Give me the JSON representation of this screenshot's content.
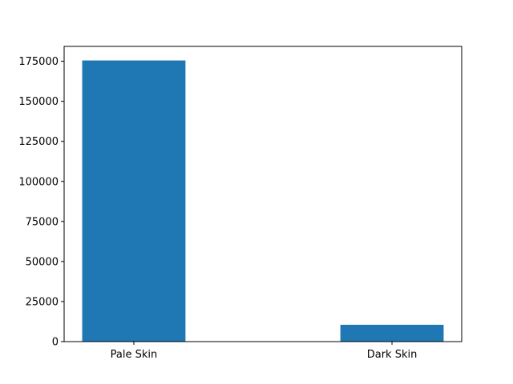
{
  "chart_data": {
    "type": "bar",
    "title": "",
    "xlabel": "",
    "ylabel": "",
    "categories": [
      "Pale Skin",
      "Dark Skin"
    ],
    "values": [
      175500,
      10500
    ],
    "ylim": [
      0,
      184275
    ],
    "yticks": [
      0,
      25000,
      50000,
      75000,
      100000,
      125000,
      150000,
      175000
    ],
    "ytick_labels": [
      "0",
      "25000",
      "50000",
      "75000",
      "100000",
      "125000",
      "150000",
      "175000"
    ],
    "bar_color": "#1f77b4",
    "grid": false,
    "legend": "none"
  }
}
